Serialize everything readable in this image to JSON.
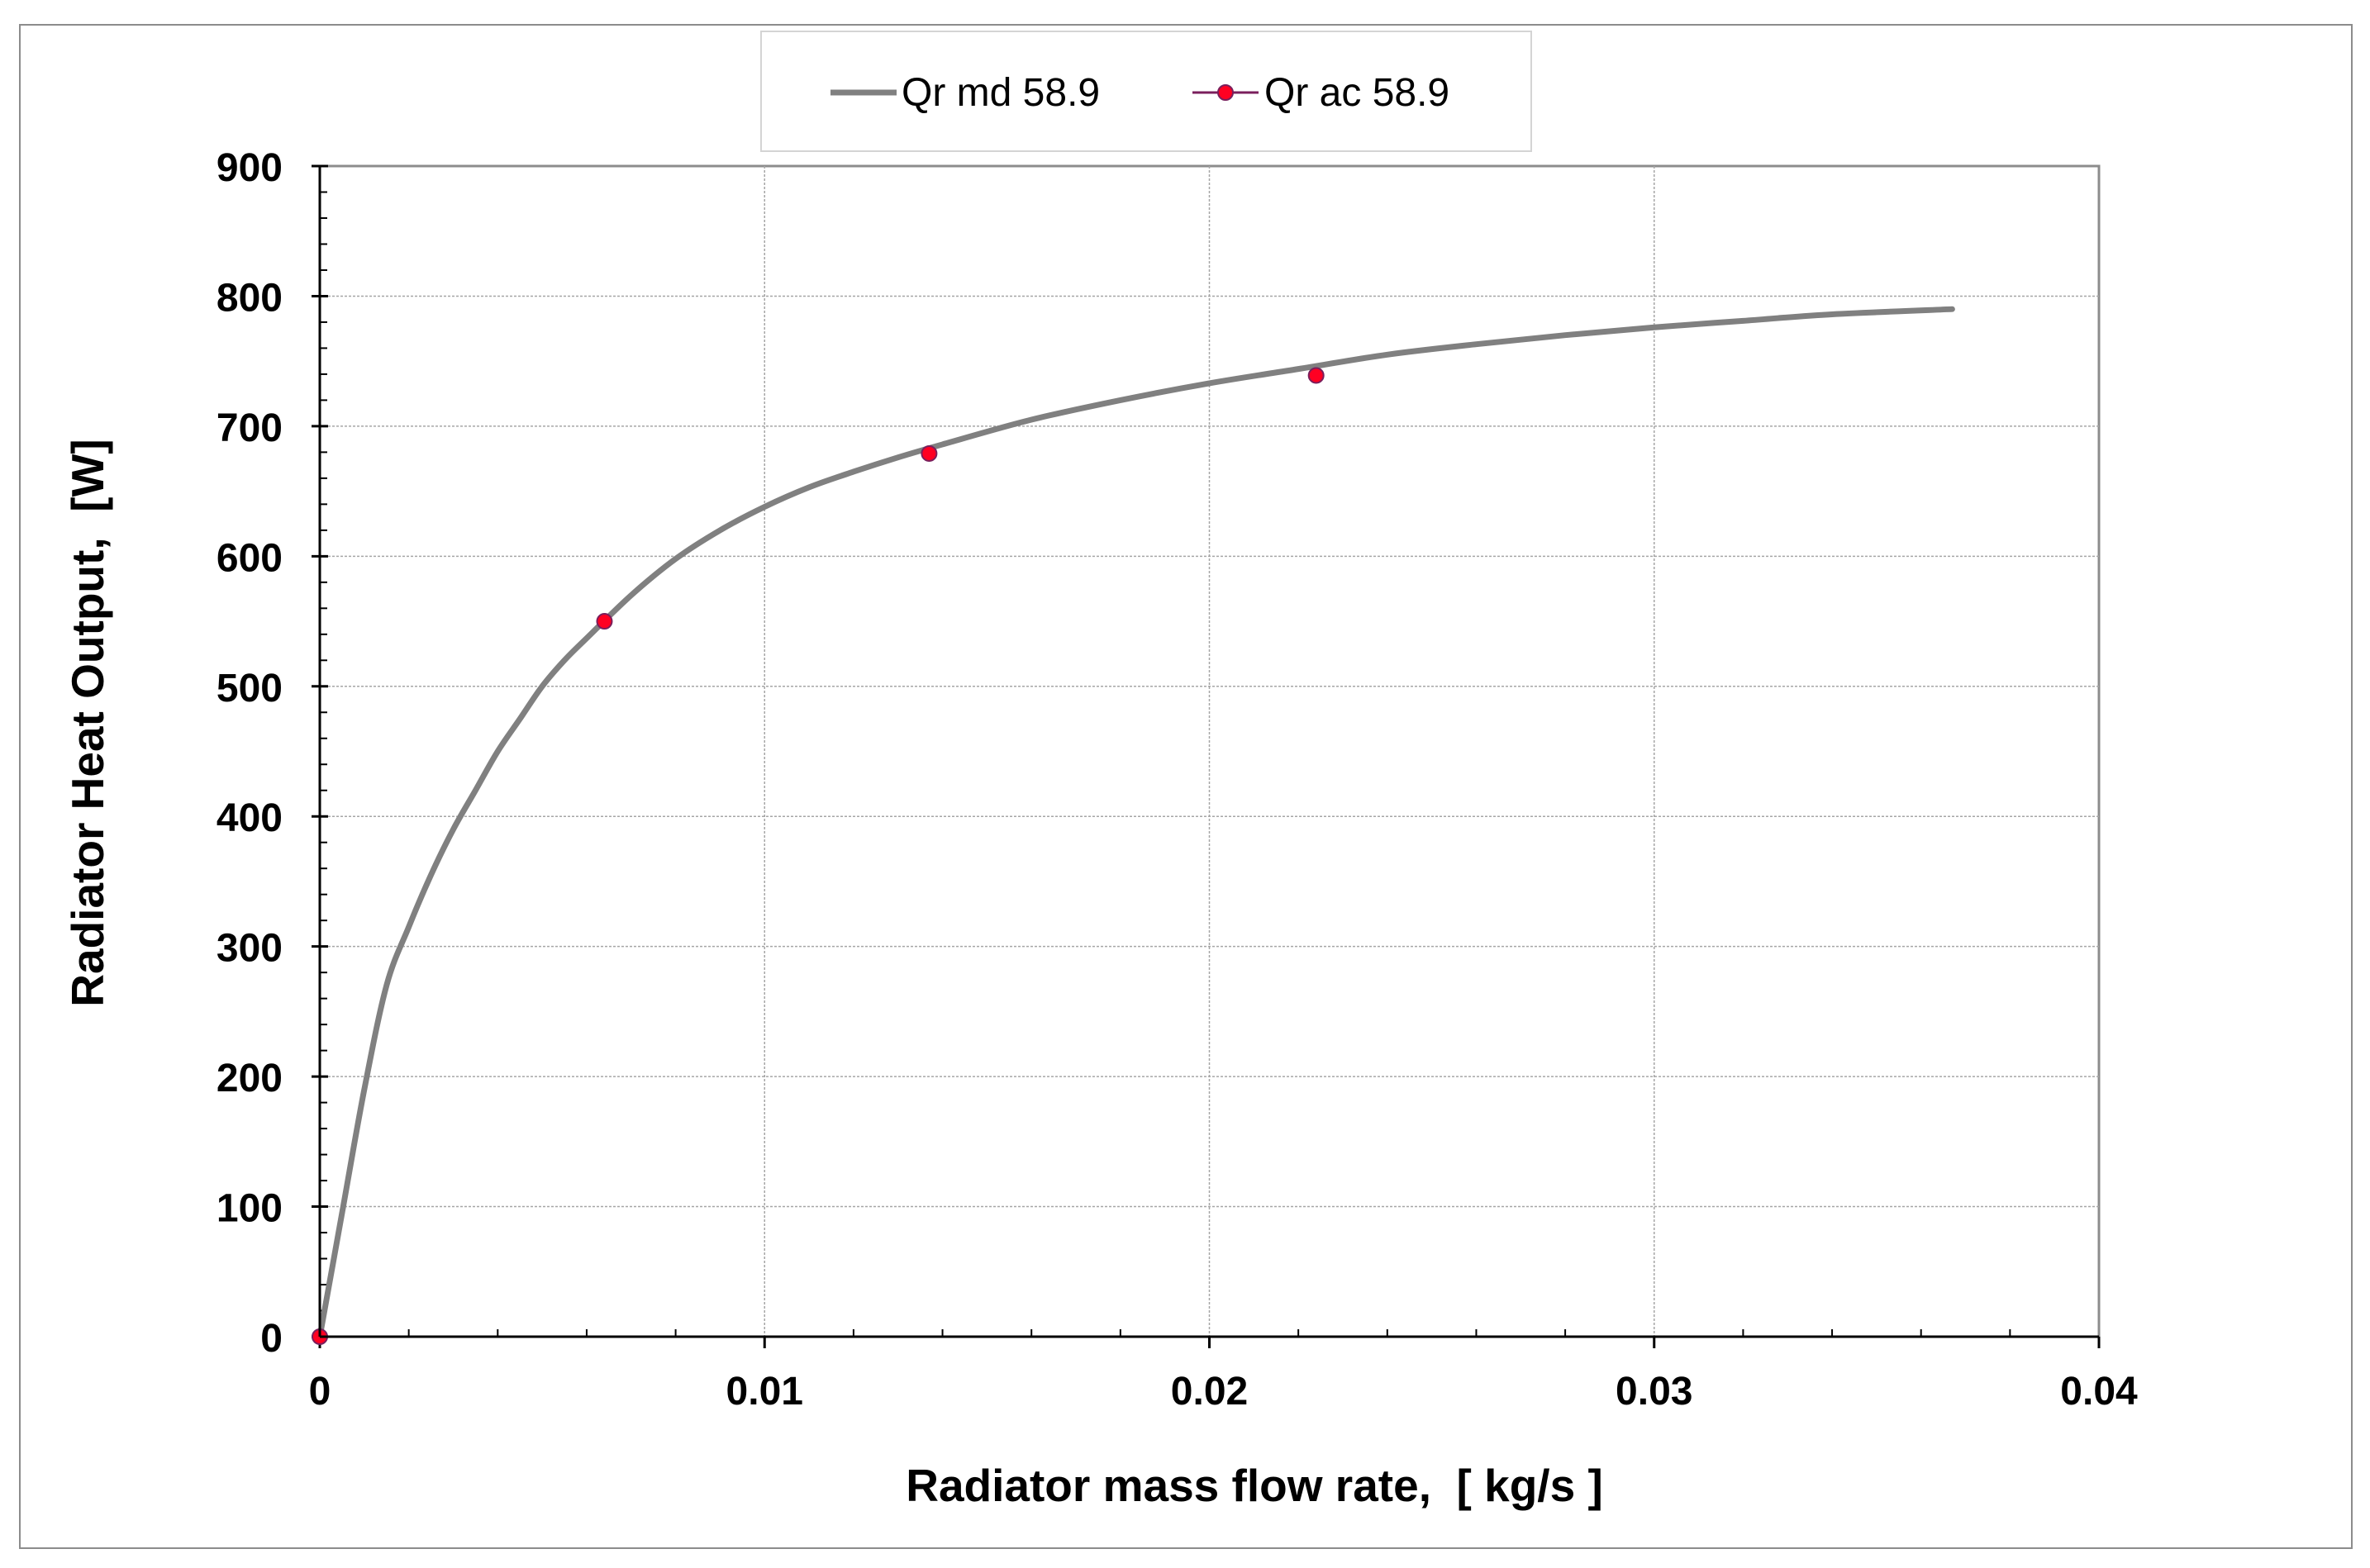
{
  "chart_data": {
    "type": "line",
    "title": "",
    "xlabel": "Radiator mass flow rate,  [ kg/s ]",
    "ylabel": "Radiator Heat Output,  [W]",
    "xlim": [
      0,
      0.04
    ],
    "ylim": [
      0,
      900
    ],
    "x_ticks": [
      0,
      0.01,
      0.02,
      0.03,
      0.04
    ],
    "x_tick_labels": [
      "0",
      "0.01",
      "0.02",
      "0.03",
      "0.04"
    ],
    "y_ticks": [
      0,
      100,
      200,
      300,
      400,
      500,
      600,
      700,
      800,
      900
    ],
    "y_tick_labels": [
      "0",
      "100",
      "200",
      "300",
      "400",
      "500",
      "600",
      "700",
      "800",
      "900"
    ],
    "grid": true,
    "legend_position": "top-center",
    "series": [
      {
        "name": "Qr md 58.9",
        "kind": "line",
        "color": "#808080",
        "x": [
          0,
          0.0005,
          0.001,
          0.0015,
          0.002,
          0.0025,
          0.003,
          0.0035,
          0.004,
          0.0045,
          0.005,
          0.0055,
          0.006,
          0.007,
          0.008,
          0.009,
          0.01,
          0.011,
          0.012,
          0.013,
          0.014,
          0.016,
          0.018,
          0.02,
          0.022,
          0.024,
          0.026,
          0.028,
          0.03,
          0.032,
          0.034,
          0.0367
        ],
        "y": [
          0,
          95,
          190,
          270,
          315,
          355,
          390,
          420,
          450,
          475,
          500,
          520,
          537,
          570,
          598,
          620,
          638,
          653,
          665,
          676,
          686,
          705,
          720,
          733,
          744,
          755,
          763,
          770,
          776,
          781,
          786,
          790
        ]
      },
      {
        "name": "Qr ac 58.9",
        "kind": "markers",
        "color": "#ff0022",
        "line_color": "#7a1f5c",
        "x": [
          0,
          0.0064,
          0.0137,
          0.0224
        ],
        "y": [
          0,
          550,
          679,
          739
        ]
      }
    ]
  }
}
